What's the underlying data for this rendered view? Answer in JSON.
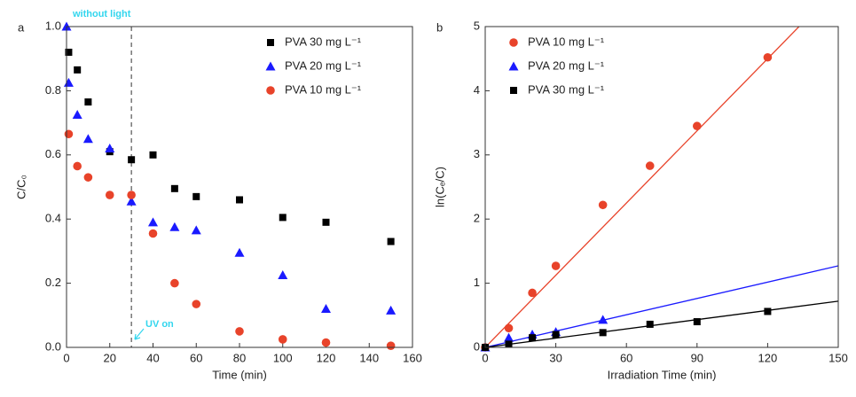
{
  "chart_data": [
    {
      "type": "scatter",
      "title": "a",
      "xlabel": "Time (min)",
      "ylabel": "C/C₀",
      "xlim": [
        0,
        160
      ],
      "xticks": [
        0,
        20,
        40,
        60,
        80,
        100,
        120,
        140,
        160
      ],
      "ylim": [
        0,
        1.0
      ],
      "yticks": [
        {
          "value": 0,
          "label": "0.0"
        },
        {
          "value": 0.2,
          "label": "0.2"
        },
        {
          "value": 0.4,
          "label": "0.4"
        },
        {
          "value": 0.6,
          "label": "0.6"
        },
        {
          "value": 0.8,
          "label": "0.8"
        },
        {
          "value": 1.0,
          "label": "1.0"
        }
      ],
      "legend": "upper right",
      "vline": 30,
      "annotations": [
        "without light",
        "UV on"
      ],
      "series": [
        {
          "name": "PVA  30 mg L⁻¹",
          "color": "#000000",
          "marker": "square",
          "x": [
            1,
            5,
            10,
            20,
            30,
            40,
            50,
            60,
            80,
            100,
            120,
            150
          ],
          "values": [
            0.92,
            0.865,
            0.765,
            0.61,
            0.585,
            0.6,
            0.495,
            0.47,
            0.46,
            0.405,
            0.39,
            0.33
          ]
        },
        {
          "name": "PVA  20 mg L⁻¹",
          "color": "#1a1aff",
          "marker": "triangle",
          "x": [
            0,
            1,
            5,
            10,
            20,
            30,
            40,
            50,
            60,
            80,
            100,
            120,
            150
          ],
          "values": [
            1.0,
            0.825,
            0.725,
            0.65,
            0.62,
            0.455,
            0.39,
            0.375,
            0.365,
            0.295,
            0.225,
            0.12,
            0.115
          ]
        },
        {
          "name": "PVA  10 mg L⁻¹",
          "color": "#e8432a",
          "marker": "circle",
          "x": [
            1,
            5,
            10,
            20,
            30,
            40,
            50,
            60,
            80,
            100,
            120,
            150
          ],
          "values": [
            0.665,
            0.565,
            0.53,
            0.475,
            0.475,
            0.355,
            0.2,
            0.135,
            0.05,
            0.025,
            0.015,
            0.005
          ]
        }
      ]
    },
    {
      "type": "scatter",
      "title": "b",
      "xlabel": "Irradiation Time (min)",
      "ylabel": "ln(Cₑ/C)",
      "xlim": [
        0,
        150
      ],
      "xticks": [
        0,
        30,
        60,
        90,
        120,
        150
      ],
      "ylim": [
        0,
        5
      ],
      "yticks": [
        0,
        1,
        2,
        3,
        4,
        5
      ],
      "legend": "upper left",
      "series": [
        {
          "name": "PVA 10 mg L⁻¹",
          "color": "#e8432a",
          "marker": "circle",
          "fit": {
            "slope": 0.0375,
            "intercept": 0
          },
          "x": [
            0,
            10,
            20,
            30,
            50,
            70,
            90,
            120
          ],
          "values": [
            0,
            0.3,
            0.85,
            1.27,
            2.22,
            2.83,
            3.45,
            4.52
          ]
        },
        {
          "name": "PVA 20 mg L⁻¹",
          "color": "#1a1aff",
          "marker": "triangle",
          "fit": {
            "slope": 0.00847,
            "intercept": 0
          },
          "x": [
            0,
            10,
            20,
            30,
            50
          ],
          "values": [
            0,
            0.15,
            0.2,
            0.24,
            0.43
          ]
        },
        {
          "name": "PVA 30 mg L⁻¹",
          "color": "#000000",
          "marker": "square",
          "fit": {
            "slope": 0.0048,
            "intercept": 0
          },
          "x": [
            0,
            10,
            20,
            30,
            50,
            70,
            90,
            120
          ],
          "values": [
            0,
            0.05,
            0.15,
            0.2,
            0.23,
            0.36,
            0.4,
            0.56
          ]
        }
      ]
    }
  ]
}
